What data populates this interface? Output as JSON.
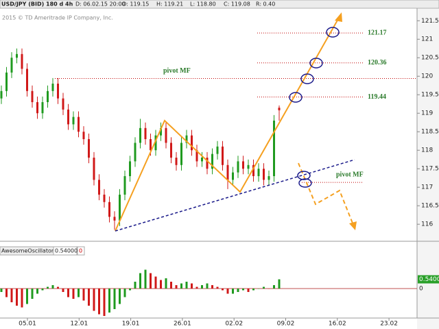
{
  "header": {
    "symbol": "USD/JPY (BID) 180 d 4h",
    "date": "D: 06.02.15 20:00",
    "open": "O: 119.15",
    "high": "H: 119.21",
    "low": "L: 118.80",
    "close": "C: 119.08",
    "range": "R: 0.40"
  },
  "copyright": "2015 © TD Ameritrade IP Company, Inc.",
  "chart_data": {
    "type": "candlestick",
    "colors": {
      "up": "#1f9a1f",
      "down": "#d01818"
    },
    "ohlc": [
      [
        119.4,
        119.75,
        119.25,
        119.6
      ],
      [
        119.6,
        120.25,
        119.45,
        120.1
      ],
      [
        120.1,
        120.65,
        119.95,
        120.5
      ],
      [
        120.5,
        120.75,
        120.35,
        120.6
      ],
      [
        120.6,
        120.75,
        120.05,
        120.2
      ],
      [
        120.2,
        120.35,
        119.45,
        119.6
      ],
      [
        119.6,
        119.75,
        119.15,
        119.3
      ],
      [
        119.3,
        119.45,
        118.85,
        119.0
      ],
      [
        119.0,
        119.45,
        118.85,
        119.3
      ],
      [
        119.3,
        119.75,
        119.15,
        119.6
      ],
      [
        119.6,
        119.95,
        119.45,
        119.8
      ],
      [
        119.8,
        119.95,
        119.25,
        119.4
      ],
      [
        119.4,
        119.55,
        118.95,
        119.1
      ],
      [
        119.1,
        119.25,
        118.55,
        118.7
      ],
      [
        118.7,
        119.05,
        118.55,
        118.9
      ],
      [
        118.9,
        119.05,
        118.35,
        118.5
      ],
      [
        118.5,
        118.65,
        118.15,
        118.3
      ],
      [
        118.3,
        118.45,
        117.65,
        117.8
      ],
      [
        117.8,
        117.95,
        117.05,
        117.2
      ],
      [
        117.2,
        117.35,
        116.65,
        116.8
      ],
      [
        116.8,
        116.95,
        116.45,
        116.6
      ],
      [
        116.6,
        116.75,
        116.05,
        116.2
      ],
      [
        116.2,
        116.35,
        115.85,
        116.1
      ],
      [
        116.1,
        116.95,
        115.95,
        116.8
      ],
      [
        116.8,
        117.45,
        116.65,
        117.3
      ],
      [
        117.3,
        117.85,
        117.15,
        117.7
      ],
      [
        117.7,
        118.35,
        117.55,
        118.2
      ],
      [
        118.2,
        118.85,
        118.05,
        118.6
      ],
      [
        118.6,
        118.75,
        118.15,
        118.3
      ],
      [
        118.3,
        118.45,
        117.85,
        118.0
      ],
      [
        118.0,
        118.55,
        117.85,
        118.4
      ],
      [
        118.4,
        118.75,
        118.25,
        118.6
      ],
      [
        118.6,
        118.75,
        118.05,
        118.2
      ],
      [
        118.2,
        118.35,
        117.65,
        117.8
      ],
      [
        117.8,
        117.95,
        117.45,
        117.6
      ],
      [
        117.6,
        118.35,
        117.45,
        118.2
      ],
      [
        118.2,
        118.55,
        118.05,
        118.4
      ],
      [
        118.4,
        118.55,
        117.85,
        118.0
      ],
      [
        118.0,
        118.15,
        117.55,
        117.7
      ],
      [
        117.7,
        117.95,
        117.55,
        117.8
      ],
      [
        117.8,
        117.95,
        117.35,
        117.5
      ],
      [
        117.5,
        118.05,
        117.35,
        117.9
      ],
      [
        117.9,
        118.25,
        117.75,
        118.1
      ],
      [
        118.1,
        118.25,
        117.45,
        117.6
      ],
      [
        117.6,
        117.75,
        116.95,
        117.2
      ],
      [
        117.2,
        117.55,
        117.05,
        117.4
      ],
      [
        117.4,
        117.85,
        117.25,
        117.7
      ],
      [
        117.7,
        117.85,
        117.35,
        117.5
      ],
      [
        117.5,
        117.75,
        117.35,
        117.6
      ],
      [
        117.6,
        117.75,
        117.15,
        117.3
      ],
      [
        117.3,
        117.65,
        117.15,
        117.5
      ],
      [
        117.5,
        117.65,
        117.05,
        117.2
      ],
      [
        117.2,
        117.45,
        117.05,
        117.3
      ],
      [
        117.3,
        118.95,
        117.15,
        118.8
      ],
      [
        119.15,
        119.21,
        118.8,
        119.08
      ]
    ],
    "ylim": [
      115.54,
      121.69
    ],
    "yticks": [
      116,
      116.5,
      117,
      117.5,
      118,
      118.5,
      119,
      119.5,
      120,
      120.5,
      121,
      121.5
    ],
    "x_labels": [
      "05.01",
      "12.01",
      "19.01",
      "26.01",
      "02.02",
      "09.02",
      "16.02",
      "23.02"
    ],
    "levels": [
      {
        "value": 121.17,
        "color": "#c00000"
      },
      {
        "value": 120.36,
        "color": "#c00000"
      },
      {
        "value": 119.44,
        "color": "#c00000"
      }
    ],
    "pivots": [
      {
        "value": 119.94,
        "label": "pivot MF"
      },
      {
        "value": 117.13,
        "label": "pivot MF"
      }
    ]
  },
  "oscillator": {
    "type": "bar",
    "name": "AwesomeOscillator",
    "values": [
      -0.2,
      -0.5,
      -0.8,
      -1.0,
      -1.1,
      -0.9,
      -0.6,
      -0.3,
      -0.1,
      0.1,
      0.2,
      0.1,
      -0.2,
      -0.5,
      -0.6,
      -0.5,
      -0.7,
      -1.0,
      -1.3,
      -1.5,
      -1.6,
      -1.4,
      -1.2,
      -0.9,
      -0.5,
      -0.1,
      0.4,
      0.9,
      1.1,
      0.9,
      0.7,
      0.5,
      0.6,
      0.4,
      0.2,
      0.3,
      0.4,
      0.3,
      0.1,
      0.2,
      0.3,
      0.2,
      0.1,
      -0.1,
      -0.3,
      -0.3,
      -0.2,
      -0.1,
      -0.2,
      -0.1,
      0.0,
      0.1,
      0.0,
      0.2,
      0.540006
    ],
    "ylim": [
      -1.64,
      1.96
    ],
    "yticks": [
      {
        "value": 0.540006,
        "label": "0.5400"
      },
      0
    ]
  }
}
